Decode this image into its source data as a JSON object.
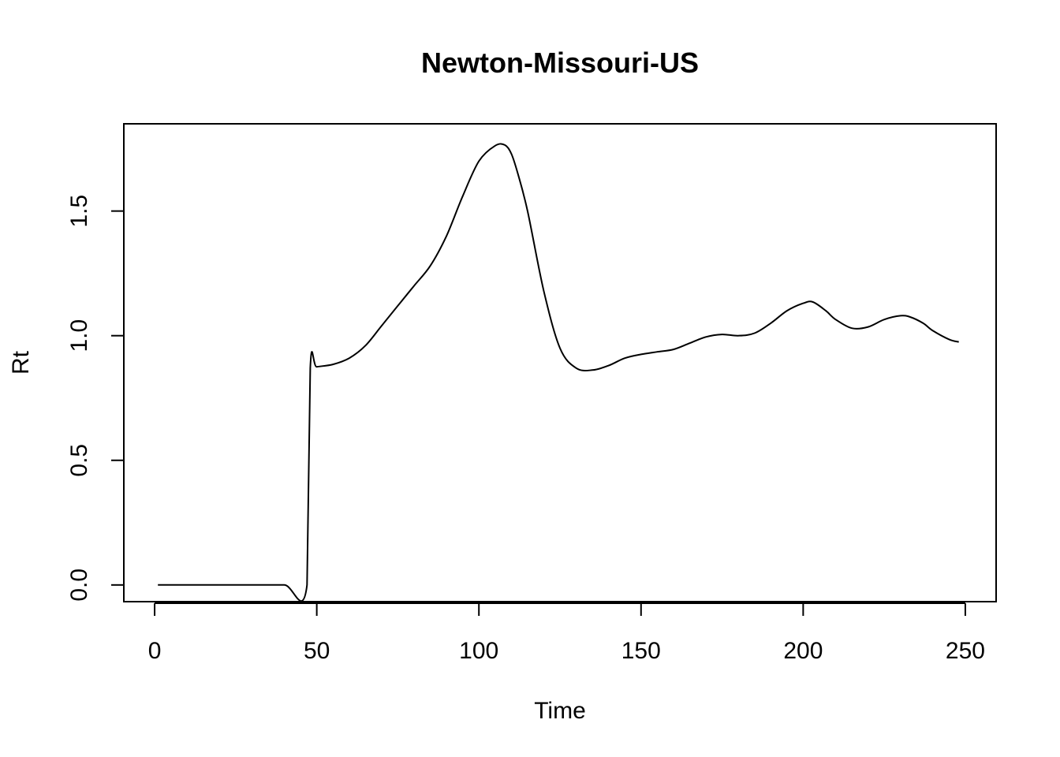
{
  "chart_data": {
    "type": "line",
    "title": "Newton-Missouri-US",
    "xlabel": "Time",
    "ylabel": "Rt",
    "xlim": [
      -9.5,
      259.5
    ],
    "ylim": [
      -0.067,
      1.85
    ],
    "xticks": [
      0,
      50,
      100,
      150,
      200,
      250
    ],
    "xtick_labels": [
      "0",
      "50",
      "100",
      "150",
      "200",
      "250"
    ],
    "yticks": [
      0.0,
      0.5,
      1.0,
      1.5
    ],
    "ytick_labels": [
      "0.0",
      "0.5",
      "1.0",
      "1.5"
    ],
    "grid": false,
    "series": [
      {
        "color": "#000000",
        "x": [
          1,
          10,
          20,
          30,
          40,
          47,
          48,
          50,
          55,
          60,
          65,
          70,
          75,
          80,
          85,
          90,
          95,
          100,
          105,
          108,
          110,
          112,
          115,
          120,
          125,
          130,
          135,
          140,
          145,
          150,
          155,
          160,
          165,
          170,
          175,
          180,
          185,
          190,
          195,
          200,
          203,
          207,
          210,
          215,
          220,
          225,
          230,
          233,
          237,
          240,
          245,
          248
        ],
        "y": [
          0,
          0,
          0,
          0,
          0,
          0,
          0.87,
          0.875,
          0.885,
          0.91,
          0.96,
          1.04,
          1.12,
          1.2,
          1.28,
          1.4,
          1.56,
          1.7,
          1.762,
          1.765,
          1.73,
          1.65,
          1.5,
          1.18,
          0.95,
          0.87,
          0.862,
          0.88,
          0.91,
          0.925,
          0.935,
          0.945,
          0.97,
          0.995,
          1.005,
          1.0,
          1.01,
          1.05,
          1.1,
          1.13,
          1.135,
          1.1,
          1.065,
          1.03,
          1.035,
          1.065,
          1.08,
          1.075,
          1.05,
          1.02,
          0.985,
          0.975
        ]
      }
    ]
  }
}
